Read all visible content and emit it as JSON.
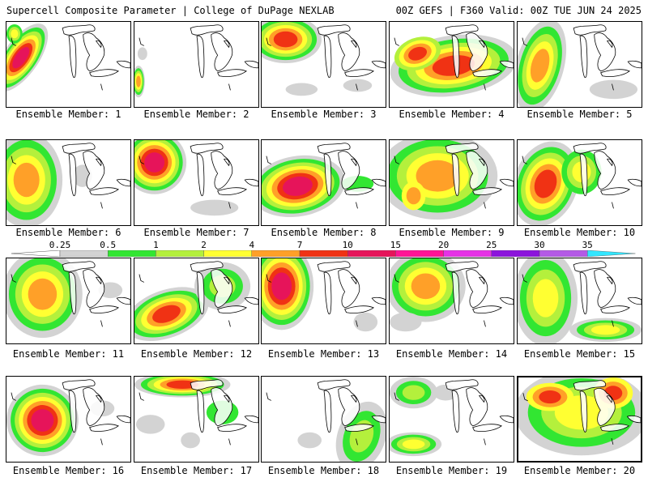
{
  "header": {
    "title": "Supercell Composite Parameter | College of DuPage NEXLAB",
    "run_info": "00Z GEFS | F360 Valid: 00Z TUE JUN 24 2025"
  },
  "legend": {
    "levels": [
      "0.25",
      "0.5",
      "1",
      "2",
      "4",
      "7",
      "10",
      "15",
      "20",
      "25",
      "30",
      "35"
    ],
    "colors": [
      "#d3d3d3",
      "#32e632",
      "#b4f03c",
      "#ffff32",
      "#ffa028",
      "#f03214",
      "#e6145a",
      "#ff1496",
      "#e632e6",
      "#8c14dc",
      "#b45ae6",
      "#32e6ff"
    ]
  },
  "members": [
    {
      "label": "Ensemble Member: 1"
    },
    {
      "label": "Ensemble Member: 2"
    },
    {
      "label": "Ensemble Member: 3"
    },
    {
      "label": "Ensemble Member: 4"
    },
    {
      "label": "Ensemble Member: 5"
    },
    {
      "label": "Ensemble Member: 6"
    },
    {
      "label": "Ensemble Member: 7"
    },
    {
      "label": "Ensemble Member: 8"
    },
    {
      "label": "Ensemble Member: 9"
    },
    {
      "label": "Ensemble Member: 10"
    },
    {
      "label": "Ensemble Member: 11"
    },
    {
      "label": "Ensemble Member: 12"
    },
    {
      "label": "Ensemble Member: 13"
    },
    {
      "label": "Ensemble Member: 14"
    },
    {
      "label": "Ensemble Member: 15"
    },
    {
      "label": "Ensemble Member: 16"
    },
    {
      "label": "Ensemble Member: 17"
    },
    {
      "label": "Ensemble Member: 18"
    },
    {
      "label": "Ensemble Member: 19"
    },
    {
      "label": "Ensemble Member: 20"
    }
  ]
}
